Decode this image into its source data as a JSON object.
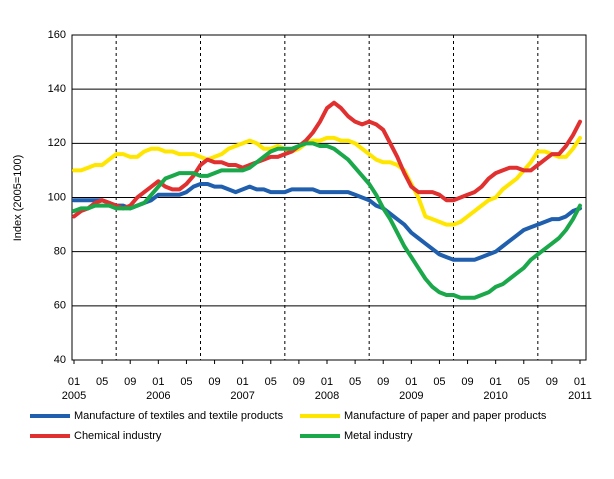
{
  "chart_data": {
    "type": "line",
    "ylabel": "Index (2005=100)",
    "categories": [
      "01",
      null,
      null,
      null,
      "05",
      null,
      null,
      null,
      "09",
      null,
      null,
      null,
      "01",
      null,
      null,
      null,
      "05",
      null,
      null,
      null,
      "09",
      null,
      null,
      null,
      "01",
      null,
      null,
      null,
      "05",
      null,
      null,
      null,
      "09",
      null,
      null,
      null,
      "01",
      null,
      null,
      null,
      "05",
      null,
      null,
      null,
      "09",
      null,
      null,
      null,
      "01",
      null,
      null,
      null,
      "05",
      null,
      null,
      null,
      "09",
      null,
      null,
      null,
      "01",
      null,
      null,
      null,
      "05",
      null,
      null,
      null,
      "09",
      null,
      null,
      null,
      "01"
    ],
    "years": [
      "2005",
      "2006",
      "2007",
      "2008",
      "2009",
      "2010",
      "2011"
    ],
    "ylim": [
      40,
      160
    ],
    "yticks": [
      40,
      60,
      80,
      100,
      120,
      140,
      160
    ],
    "grid": true,
    "series": [
      {
        "name": "Manufacture of textiles and textile products",
        "color": "#1f5fae",
        "values": [
          99,
          99,
          99,
          99,
          99,
          98,
          97,
          97,
          96,
          97,
          98,
          99,
          101,
          101,
          101,
          101,
          102,
          104,
          105,
          105,
          104,
          104,
          103,
          102,
          103,
          104,
          103,
          103,
          102,
          102,
          102,
          103,
          103,
          103,
          103,
          102,
          102,
          102,
          102,
          102,
          101,
          100,
          99,
          97,
          96,
          94,
          92,
          90,
          87,
          85,
          83,
          81,
          79,
          78,
          77,
          77,
          77,
          77,
          78,
          79,
          80,
          82,
          84,
          86,
          88,
          89,
          90,
          91,
          92,
          92,
          93,
          95,
          96
        ]
      },
      {
        "name": "Manufacture of paper and paper products",
        "color": "#ffe600",
        "values": [
          110,
          110,
          111,
          112,
          112,
          114,
          116,
          116,
          115,
          115,
          117,
          118,
          118,
          117,
          117,
          116,
          116,
          116,
          115,
          114,
          115,
          116,
          118,
          119,
          120,
          121,
          120,
          118,
          118,
          119,
          118,
          117,
          118,
          120,
          121,
          121,
          122,
          122,
          121,
          121,
          120,
          118,
          116,
          114,
          113,
          113,
          112,
          110,
          105,
          100,
          93,
          92,
          91,
          90,
          90,
          91,
          93,
          95,
          97,
          99,
          100,
          103,
          105,
          107,
          110,
          113,
          117,
          117,
          116,
          115,
          115,
          118,
          122
        ]
      },
      {
        "name": "Chemical industry",
        "color": "#e03030",
        "values": [
          93,
          95,
          96,
          98,
          99,
          98,
          97,
          96,
          97,
          100,
          102,
          104,
          106,
          104,
          103,
          103,
          105,
          108,
          112,
          114,
          113,
          113,
          112,
          112,
          111,
          112,
          113,
          114,
          115,
          115,
          116,
          117,
          119,
          121,
          124,
          128,
          133,
          135,
          133,
          130,
          128,
          127,
          128,
          127,
          125,
          120,
          115,
          109,
          104,
          102,
          102,
          102,
          101,
          99,
          99,
          100,
          101,
          102,
          104,
          107,
          109,
          110,
          111,
          111,
          110,
          110,
          112,
          114,
          116,
          116,
          119,
          123,
          128
        ]
      },
      {
        "name": "Metal industry",
        "color": "#1aa84a",
        "values": [
          95,
          96,
          96,
          97,
          97,
          97,
          96,
          96,
          96,
          97,
          98,
          101,
          104,
          107,
          108,
          109,
          109,
          109,
          108,
          108,
          109,
          110,
          110,
          110,
          110,
          111,
          113,
          115,
          117,
          118,
          118,
          118,
          119,
          120,
          120,
          119,
          119,
          118,
          116,
          114,
          111,
          108,
          105,
          101,
          96,
          92,
          87,
          82,
          78,
          74,
          70,
          67,
          65,
          64,
          64,
          63,
          63,
          63,
          64,
          65,
          67,
          68,
          70,
          72,
          74,
          77,
          79,
          81,
          83,
          85,
          88,
          92,
          97
        ]
      }
    ]
  }
}
